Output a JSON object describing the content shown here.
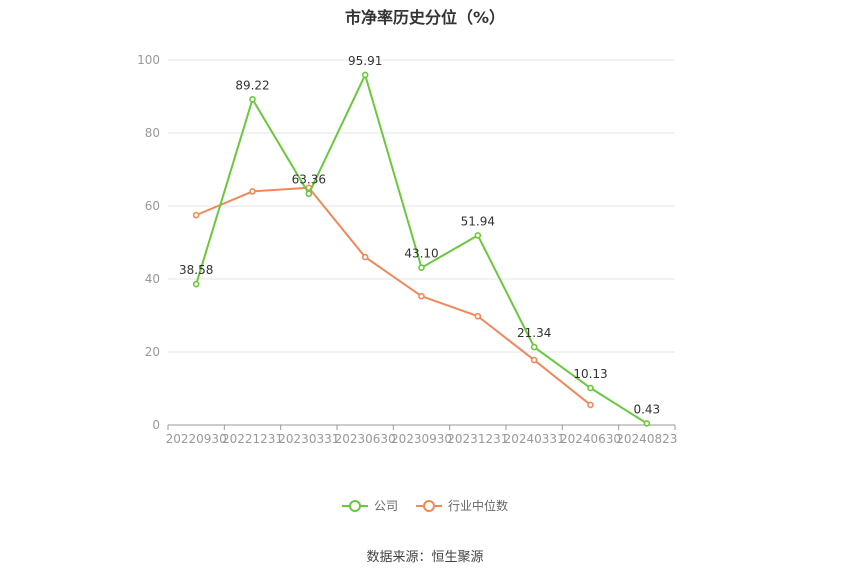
{
  "title": "市净率历史分位（%）",
  "source": "数据来源：恒生聚源",
  "chart_data": {
    "type": "line",
    "categories": [
      "20220930",
      "20221231",
      "20230331",
      "20230630",
      "20230930",
      "20231231",
      "20240331",
      "20240630",
      "20240823"
    ],
    "ylim": [
      0,
      100
    ],
    "yticks": [
      0,
      20,
      40,
      60,
      80,
      100
    ],
    "grid": true,
    "legend_position": "bottom",
    "series": [
      {
        "name": "公司",
        "color": "#6ac83c",
        "values": [
          38.58,
          89.22,
          63.36,
          95.91,
          43.1,
          51.94,
          21.34,
          10.13,
          0.43
        ],
        "labels": [
          "38.58",
          "89.22",
          "63.36",
          "95.91",
          "43.10",
          "51.94",
          "21.34",
          "10.13",
          "0.43"
        ]
      },
      {
        "name": "行业中位数",
        "color": "#f0885a",
        "values": [
          57.5,
          64.0,
          65.0,
          46.0,
          35.3,
          29.8,
          17.8,
          5.5,
          null
        ]
      }
    ]
  }
}
